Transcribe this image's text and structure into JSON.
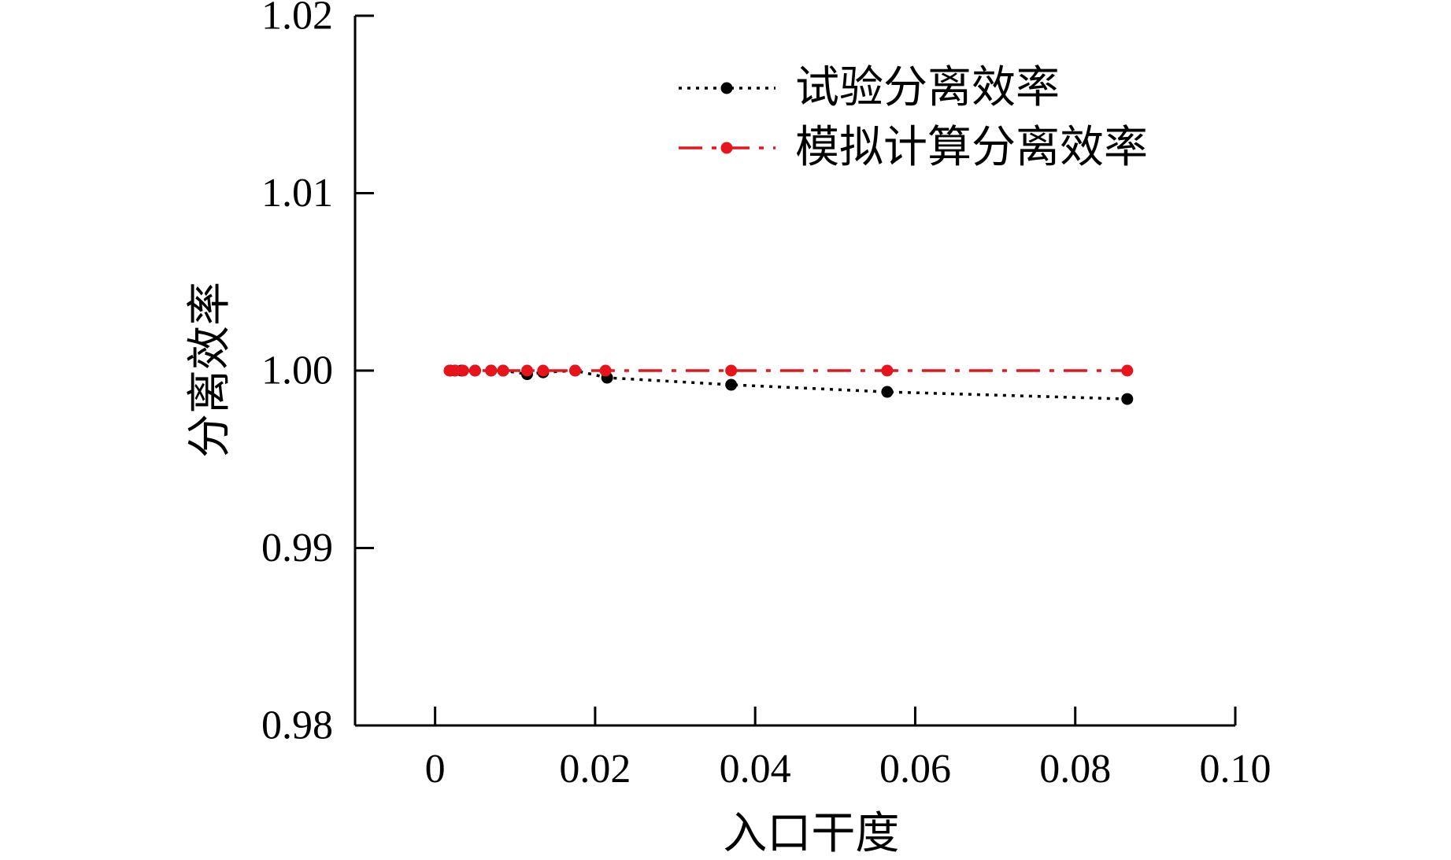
{
  "chart_data": {
    "type": "line",
    "title": "",
    "xlabel": "入口干度",
    "ylabel": "分离效率",
    "xlim": [
      -0.01,
      0.1
    ],
    "ylim": [
      0.98,
      1.02
    ],
    "xticks": [
      0,
      0.02,
      0.04,
      0.06,
      0.08,
      0.1
    ],
    "xtick_labels": [
      "0",
      "0.02",
      "0.04",
      "0.06",
      "0.08",
      "0.10"
    ],
    "yticks": [
      0.98,
      0.99,
      1.0,
      1.01,
      1.02
    ],
    "ytick_labels": [
      "0.98",
      "0.99",
      "1.00",
      "1.01",
      "1.02"
    ],
    "grid": false,
    "legend_position": "top-right",
    "series": [
      {
        "name": "试验分离效率",
        "color": "#000000",
        "line_style": "dotted",
        "points": [
          {
            "x": 0.0019,
            "y": 1.0
          },
          {
            "x": 0.0025,
            "y": 1.0
          },
          {
            "x": 0.0033,
            "y": 1.0
          },
          {
            "x": 0.005,
            "y": 1.0
          },
          {
            "x": 0.007,
            "y": 1.0
          },
          {
            "x": 0.0085,
            "y": 1.0
          },
          {
            "x": 0.0115,
            "y": 0.9998
          },
          {
            "x": 0.0135,
            "y": 0.9999
          },
          {
            "x": 0.0175,
            "y": 1.0
          },
          {
            "x": 0.0215,
            "y": 0.9996
          },
          {
            "x": 0.037,
            "y": 0.9992
          },
          {
            "x": 0.0565,
            "y": 0.9988
          },
          {
            "x": 0.0865,
            "y": 0.9984
          }
        ]
      },
      {
        "name": "模拟计算分离效率",
        "color": "#e8141b",
        "line_style": "dash-dot",
        "points": [
          {
            "x": 0.0018,
            "y": 1.0
          },
          {
            "x": 0.0025,
            "y": 1.0
          },
          {
            "x": 0.0035,
            "y": 1.0
          },
          {
            "x": 0.005,
            "y": 1.0
          },
          {
            "x": 0.007,
            "y": 1.0
          },
          {
            "x": 0.0085,
            "y": 1.0
          },
          {
            "x": 0.0115,
            "y": 1.0
          },
          {
            "x": 0.0135,
            "y": 1.0
          },
          {
            "x": 0.0175,
            "y": 1.0
          },
          {
            "x": 0.0213,
            "y": 1.0
          },
          {
            "x": 0.037,
            "y": 1.0
          },
          {
            "x": 0.0565,
            "y": 1.0
          },
          {
            "x": 0.0865,
            "y": 1.0
          }
        ]
      }
    ]
  }
}
